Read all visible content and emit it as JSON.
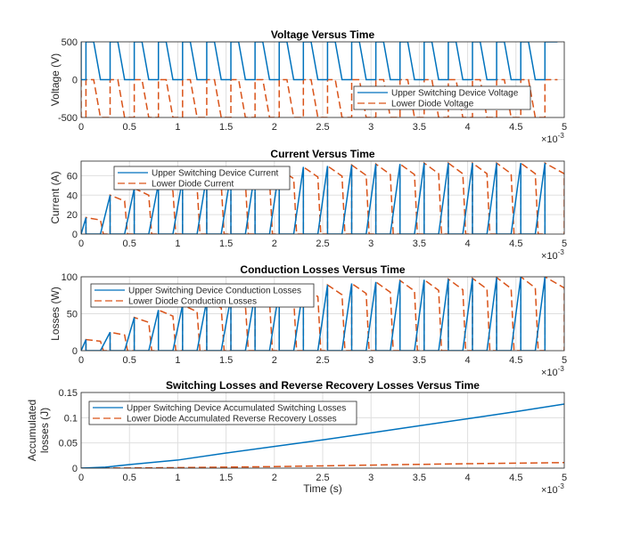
{
  "colors": {
    "upper": "#0072BD",
    "lower": "#D95319",
    "grid": "#DFDFDF",
    "axis": "#262626"
  },
  "chart_data": [
    {
      "type": "line",
      "title": "Voltage Versus Time",
      "ylabel": "Voltage (V)",
      "xlabel": "",
      "xlim": [
        0,
        5
      ],
      "ylim": [
        -500,
        500
      ],
      "xticks": [
        "0",
        "0.5",
        "1",
        "1.5",
        "2",
        "2.5",
        "3",
        "3.5",
        "4",
        "4.5",
        "5"
      ],
      "yticks": [
        "-500",
        "0",
        "500"
      ],
      "x_exponent": "×10",
      "x_exponent_power": "-3",
      "grid": true,
      "legend_placement": "bottom-right",
      "series": [
        {
          "name": "Upper Switching Device Voltage",
          "style": "solid",
          "on_level": 0,
          "off_level": 500
        },
        {
          "name": "Lower Diode Voltage",
          "style": "dashed",
          "on_level": -500,
          "off_level": 0
        }
      ]
    },
    {
      "type": "line",
      "title": "Current Versus Time",
      "ylabel": "Current (A)",
      "xlabel": "",
      "xlim": [
        0,
        5
      ],
      "ylim": [
        0,
        75
      ],
      "xticks": [
        "0",
        "0.5",
        "1",
        "1.5",
        "2",
        "2.5",
        "3",
        "3.5",
        "4",
        "4.5",
        "5"
      ],
      "yticks": [
        "0",
        "20",
        "40",
        "60"
      ],
      "x_exponent": "×10",
      "x_exponent_power": "-3",
      "grid": true,
      "legend_placement": "top-left",
      "series": [
        {
          "name": "Upper Switching Device Current",
          "style": "solid"
        },
        {
          "name": "Lower Diode Current",
          "style": "dashed"
        }
      ],
      "cycle_peaks": [
        17,
        40,
        47,
        52,
        57,
        60,
        63,
        65,
        67,
        69,
        70,
        71,
        72,
        72,
        73,
        73,
        73,
        73,
        73,
        73
      ]
    },
    {
      "type": "line",
      "title": "Conduction Losses Versus Time",
      "ylabel": "Losses (W)",
      "xlabel": "",
      "xlim": [
        0,
        5
      ],
      "ylim": [
        0,
        100
      ],
      "xticks": [
        "0",
        "0.5",
        "1",
        "1.5",
        "2",
        "2.5",
        "3",
        "3.5",
        "4",
        "4.5",
        "5"
      ],
      "yticks": [
        "0",
        "50",
        "100"
      ],
      "x_exponent": "×10",
      "x_exponent_power": "-3",
      "grid": true,
      "legend_placement": "top-left",
      "series": [
        {
          "name": "Upper Switching Device Conduction Losses",
          "style": "solid"
        },
        {
          "name": "Lower Diode Conduction Losses",
          "style": "dashed"
        }
      ],
      "cycle_peaks": [
        15,
        25,
        45,
        55,
        62,
        68,
        73,
        78,
        82,
        86,
        89,
        91,
        93,
        95,
        96,
        97,
        98,
        99,
        100,
        100
      ]
    },
    {
      "type": "line",
      "title": "Switching Losses and Reverse Recovery Losses Versus Time",
      "ylabel": "Accumulated losses  (J)",
      "ylabel_lines": [
        "Accumulated",
        "losses  (J)"
      ],
      "xlabel": "Time (s)",
      "xlim": [
        0,
        5
      ],
      "ylim": [
        0,
        0.15
      ],
      "xticks": [
        "0",
        "0.5",
        "1",
        "1.5",
        "2",
        "2.5",
        "3",
        "3.5",
        "4",
        "4.5",
        "5"
      ],
      "yticks": [
        "0",
        "0.05",
        "0.1",
        "0.15"
      ],
      "x_exponent": "×10",
      "x_exponent_power": "-3",
      "grid": true,
      "legend_placement": "top-left",
      "series": [
        {
          "name": "Upper Switching Device Accumulated Switching Losses",
          "style": "solid",
          "x": [
            0,
            0.25,
            0.5,
            1,
            1.5,
            2,
            2.5,
            3,
            3.5,
            4,
            4.5,
            5
          ],
          "y": [
            0,
            0.002,
            0.007,
            0.016,
            0.03,
            0.043,
            0.056,
            0.07,
            0.084,
            0.098,
            0.112,
            0.127
          ]
        },
        {
          "name": "Lower Diode Accumulated Reverse Recovery Losses",
          "style": "dashed",
          "x": [
            0,
            0.5,
            1,
            1.5,
            2,
            2.5,
            3,
            3.5,
            4,
            4.5,
            5
          ],
          "y": [
            0,
            0.0003,
            0.001,
            0.002,
            0.003,
            0.0045,
            0.006,
            0.0075,
            0.0088,
            0.0099,
            0.011
          ]
        }
      ]
    }
  ],
  "switching": {
    "period_ms": 0.25,
    "first_turn_off_ms": 0.05,
    "on_time_ms": 0.1
  }
}
